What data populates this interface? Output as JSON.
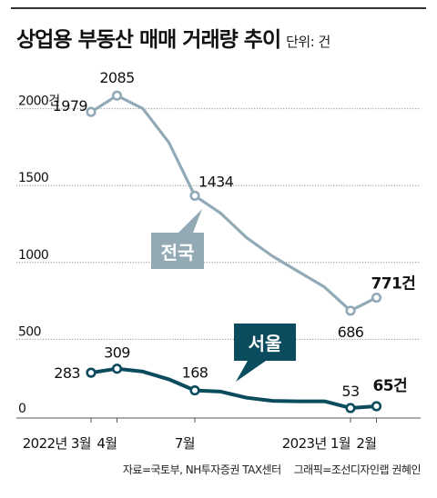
{
  "title": "상업용 부동산 매매 거래량 추이",
  "unit_note": "단위: 건",
  "source": "자료=국토부, NH투자증권 TAX센터",
  "credit": "그래픽=조선디자인랩 권혜인",
  "colors": {
    "national": "#92aab7",
    "national_label_bg": "#93aab5",
    "seoul": "#0b4b5e",
    "seoul_label_bg": "#0b4b5e",
    "grid": "#9a9a9a",
    "text": "#111111"
  },
  "chart_data": {
    "type": "line",
    "title": "상업용 부동산 매매 거래량 추이",
    "xlabel": "",
    "ylabel": "",
    "ylim": [
      0,
      2100
    ],
    "grid": true,
    "x": [
      "2022-03",
      "2022-04",
      "2022-05",
      "2022-06",
      "2022-07",
      "2022-08",
      "2022-09",
      "2022-10",
      "2022-11",
      "2022-12",
      "2023-01",
      "2023-02"
    ],
    "x_ticks": [
      {
        "x": "2022-03",
        "label": "2022년 3월"
      },
      {
        "x": "2022-04",
        "label": "4월"
      },
      {
        "x": "2022-07",
        "label": "7월"
      },
      {
        "x": "2023-01",
        "label": "2023년 1월"
      },
      {
        "x": "2023-02",
        "label": "2월"
      }
    ],
    "y_ticks": [
      {
        "value": 2000,
        "label": "2000건"
      },
      {
        "value": 1500,
        "label": "1500"
      },
      {
        "value": 1000,
        "label": "1000"
      },
      {
        "value": 500,
        "label": "500"
      },
      {
        "value": 0,
        "label": "0"
      }
    ],
    "series": [
      {
        "name": "전국",
        "values": [
          1979,
          2085,
          2000,
          1780,
          1434,
          1320,
          1160,
          1040,
          940,
          840,
          686,
          771
        ],
        "markers": [
          0,
          1,
          4,
          10,
          11
        ],
        "labels": [
          {
            "index": 0,
            "text": "1979"
          },
          {
            "index": 1,
            "text": "2085"
          },
          {
            "index": 4,
            "text": "1434"
          },
          {
            "index": 10,
            "text": "686"
          },
          {
            "index": 11,
            "text": "771건"
          }
        ]
      },
      {
        "name": "서울",
        "values": [
          283,
          309,
          290,
          240,
          168,
          160,
          120,
          100,
          97,
          97,
          53,
          65
        ],
        "markers": [
          0,
          1,
          4,
          10,
          11
        ],
        "labels": [
          {
            "index": 0,
            "text": "283"
          },
          {
            "index": 1,
            "text": "309"
          },
          {
            "index": 4,
            "text": "168"
          },
          {
            "index": 10,
            "text": "53"
          },
          {
            "index": 11,
            "text": "65건"
          }
        ]
      }
    ]
  }
}
